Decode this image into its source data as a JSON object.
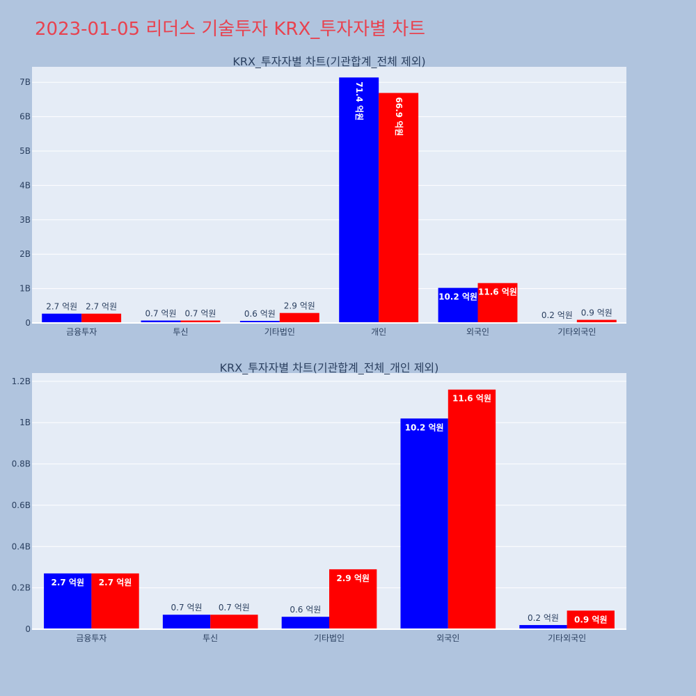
{
  "page": {
    "title": "2023-01-05 리더스 기술투자 KRX_투자자별 차트"
  },
  "colors": {
    "background": "#b0c4de",
    "plot_background": "#e5ecf6",
    "title": "#e8424f",
    "text": "#2a3f5f",
    "series_1": "#0000ff",
    "series_2": "#ff0000"
  },
  "chart_data": [
    {
      "type": "bar",
      "title": "KRX_투자자별 차트(기관합계_전체 제외)",
      "categories": [
        "금융투자",
        "투신",
        "기타법인",
        "개인",
        "외국인",
        "기타외국인"
      ],
      "series": [
        {
          "color": "#0000ff",
          "values": [
            270000000,
            70000000,
            60000000,
            7140000000,
            1020000000,
            20000000
          ],
          "labels": [
            "2.7 억원",
            "0.7 억원",
            "0.6 억원",
            "71.4 억원",
            "10.2 억원",
            "0.2 억원"
          ]
        },
        {
          "color": "#ff0000",
          "values": [
            270000000,
            70000000,
            290000000,
            6690000000,
            1160000000,
            90000000
          ],
          "labels": [
            "2.7 억원",
            "0.7 억원",
            "2.9 억원",
            "66.9 억원",
            "11.6 억원",
            "0.9 억원"
          ]
        }
      ],
      "ylim": [
        0,
        7450000000
      ],
      "yticks": [
        0,
        1000000000,
        2000000000,
        3000000000,
        4000000000,
        5000000000,
        6000000000,
        7000000000
      ],
      "ytick_labels": [
        "0",
        "1B",
        "2B",
        "3B",
        "4B",
        "5B",
        "6B",
        "7B"
      ],
      "grid": true,
      "xlabel": "",
      "ylabel": ""
    },
    {
      "type": "bar",
      "title": "KRX_투자자별 차트(기관합계_전체_개인 제외)",
      "categories": [
        "금융투자",
        "투신",
        "기타법인",
        "외국인",
        "기타외국인"
      ],
      "series": [
        {
          "color": "#0000ff",
          "values": [
            270000000,
            70000000,
            60000000,
            1020000000,
            20000000
          ],
          "labels": [
            "2.7 억원",
            "0.7 억원",
            "0.6 억원",
            "10.2 억원",
            "0.2 억원"
          ]
        },
        {
          "color": "#ff0000",
          "values": [
            270000000,
            70000000,
            290000000,
            1160000000,
            90000000
          ],
          "labels": [
            "2.7 억원",
            "0.7 억원",
            "2.9 억원",
            "11.6 억원",
            "0.9 억원"
          ]
        }
      ],
      "ylim": [
        0,
        1240000000
      ],
      "yticks": [
        0,
        200000000,
        400000000,
        600000000,
        800000000,
        1000000000,
        1200000000
      ],
      "ytick_labels": [
        "0",
        "0.2B",
        "0.4B",
        "0.6B",
        "0.8B",
        "1B",
        "1.2B"
      ],
      "grid": true,
      "xlabel": "",
      "ylabel": ""
    }
  ]
}
